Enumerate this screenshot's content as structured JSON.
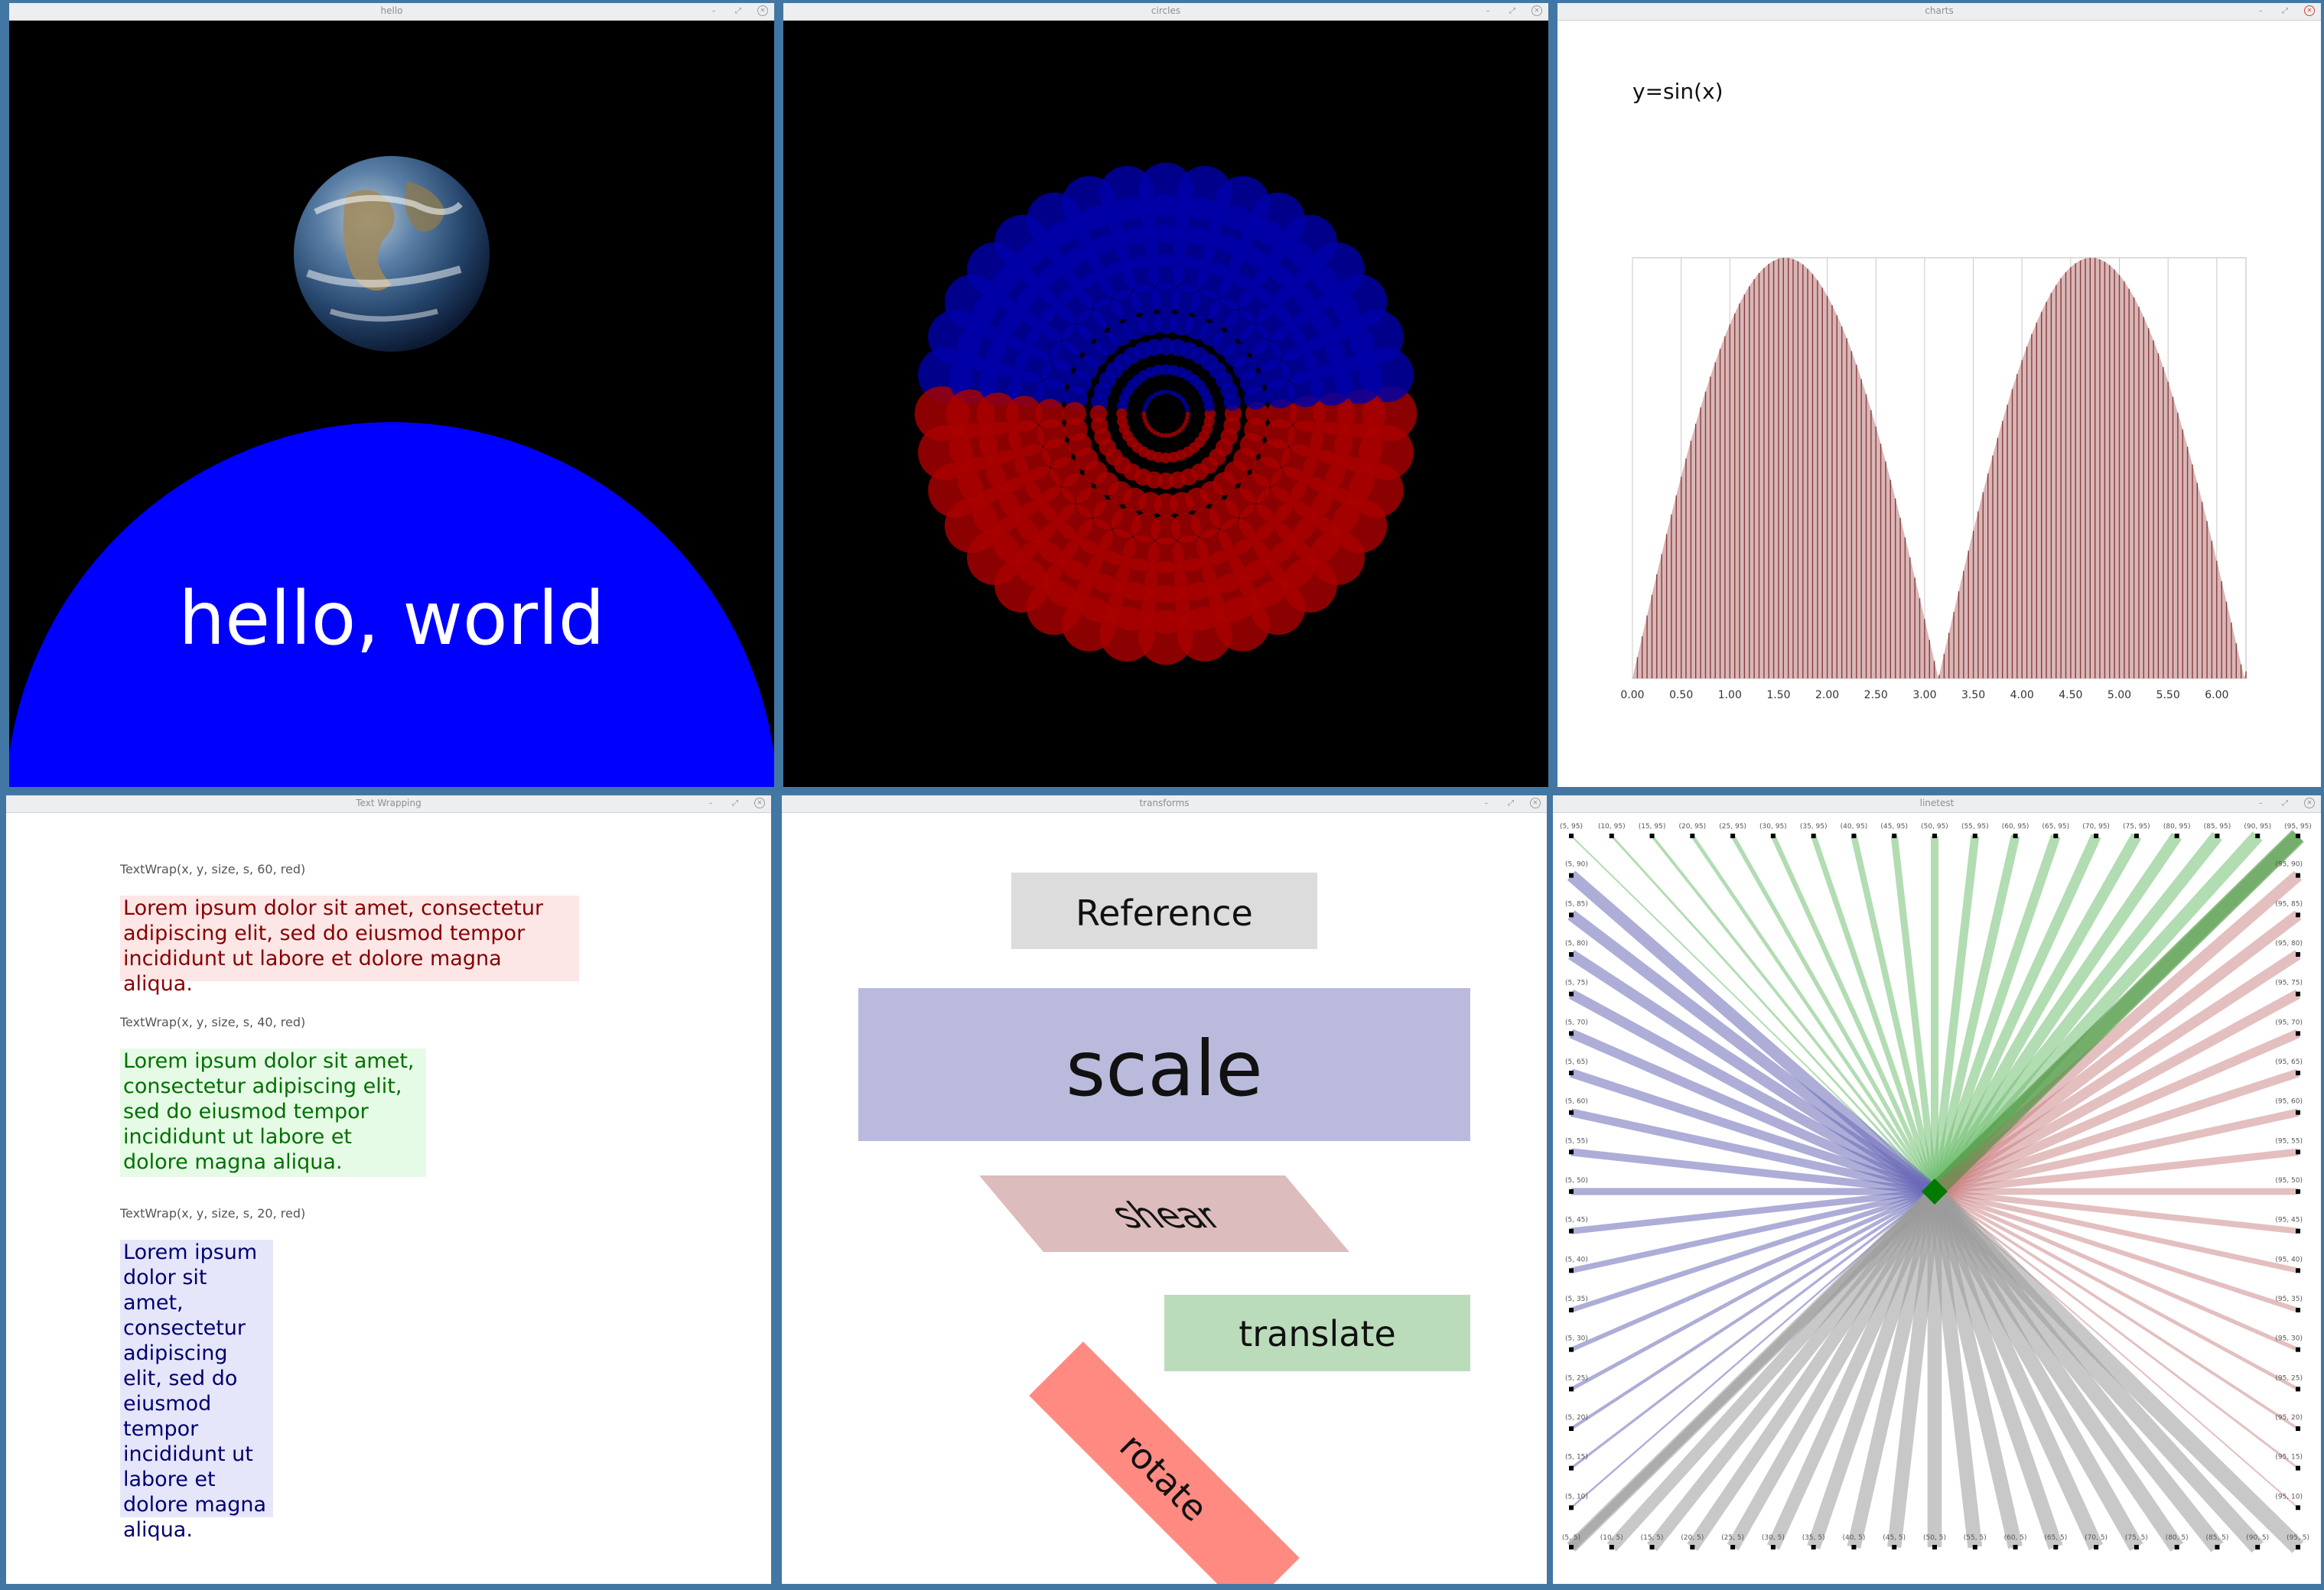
{
  "windows": {
    "hello": {
      "title": "hello",
      "text": "hello, world"
    },
    "circles": {
      "title": "circles"
    },
    "charts": {
      "title": "charts",
      "chart_title": "y=sin(x)"
    },
    "textwrap": {
      "title": "Text Wrapping",
      "blocks": [
        {
          "caption": "TextWrap(x, y, size, s, 60, red)",
          "text": "Lorem ipsum dolor sit amet, consectetur adipiscing elit, sed do eiusmod tempor incididunt ut labore et dolore magna aliqua."
        },
        {
          "caption": "TextWrap(x, y, size, s, 40, red)",
          "text": "Lorem ipsum dolor sit amet, consectetur adipiscing elit, sed do eiusmod tempor incididunt ut labore et dolore magna aliqua."
        },
        {
          "caption": "TextWrap(x, y, size, s, 20, red)",
          "text": "Lorem ipsum dolor sit amet, consectetur adipiscing elit, sed do eiusmod tempor incididunt ut labore et dolore magna aliqua."
        }
      ]
    },
    "transforms": {
      "title": "transforms",
      "reference": "Reference",
      "scale": "scale",
      "shear": "shear",
      "translate": "translate",
      "rotate": "rotate"
    },
    "linetest": {
      "title": "linetest"
    }
  },
  "window_buttons": {
    "minimize": "–",
    "maximize": "⤢",
    "close": "✕"
  },
  "colors": {
    "desktop": "#4277a4",
    "hello_blue": "#0000ff",
    "circle_blue": "#0000aa",
    "circle_red": "#aa0000",
    "bar_fill": "#d8b7b7",
    "bar_line": "#8b3a3a"
  },
  "chart_data": {
    "type": "bar",
    "title": "y=sin(x)",
    "x_ticks": [
      "0.00",
      "0.50",
      "1.00",
      "1.50",
      "2.00",
      "2.50",
      "3.00",
      "3.50",
      "4.00",
      "4.50",
      "5.00",
      "5.50",
      "6.00"
    ],
    "x_start": 0,
    "x_step": 0.05,
    "n_bars": 127,
    "function": "abs(sin(x))",
    "xlim": [
      0,
      6.3
    ],
    "ylim": [
      0,
      1
    ],
    "grid": "vertical"
  },
  "linetest_data": {
    "top_labels": [
      "(5, 95)",
      "(10, 95)",
      "(15, 95)",
      "(20, 95)",
      "(25, 95)",
      "(30, 95)",
      "(35, 95)",
      "(40, 95)",
      "(45, 95)",
      "(50, 95)",
      "(55, 95)",
      "(60, 95)",
      "(65, 95)",
      "(70, 95)",
      "(75, 95)",
      "(80, 95)",
      "(85, 95)",
      "(90, 95)",
      "(95, 95)"
    ],
    "bottom_labels": [
      "(5, 5)",
      "(10, 5)",
      "(15, 5)",
      "(20, 5)",
      "(25, 5)",
      "(30, 5)",
      "(35, 5)",
      "(40, 5)",
      "(45, 5)",
      "(50, 5)",
      "(55, 5)",
      "(60, 5)",
      "(65, 5)",
      "(70, 5)",
      "(75, 5)",
      "(80, 5)",
      "(85, 5)",
      "(90, 5)",
      "(95, 5)"
    ],
    "left_labels": [
      "(5, 90)",
      "(5, 85)",
      "(5, 80)",
      "(5, 75)",
      "(5, 70)",
      "(5, 65)",
      "(5, 60)",
      "(5, 55)",
      "(5, 50)",
      "(5, 45)",
      "(5, 40)",
      "(5, 35)",
      "(5, 30)",
      "(5, 25)",
      "(5, 20)",
      "(5, 15)",
      "(5, 10)"
    ],
    "right_labels": [
      "(95, 90)",
      "(95, 85)",
      "(95, 80)",
      "(95, 75)",
      "(95, 70)",
      "(95, 65)",
      "(95, 60)",
      "(95, 55)",
      "(95, 50)",
      "(95, 45)",
      "(95, 40)",
      "(95, 35)",
      "(95, 30)",
      "(95, 25)",
      "(95, 20)",
      "(95, 15)",
      "(95, 10)"
    ],
    "colors": {
      "top": "#73c073",
      "left": "#6a6ab8",
      "right": "#c98080",
      "bottom": "#9a9a9a",
      "center": "#007a00"
    }
  }
}
